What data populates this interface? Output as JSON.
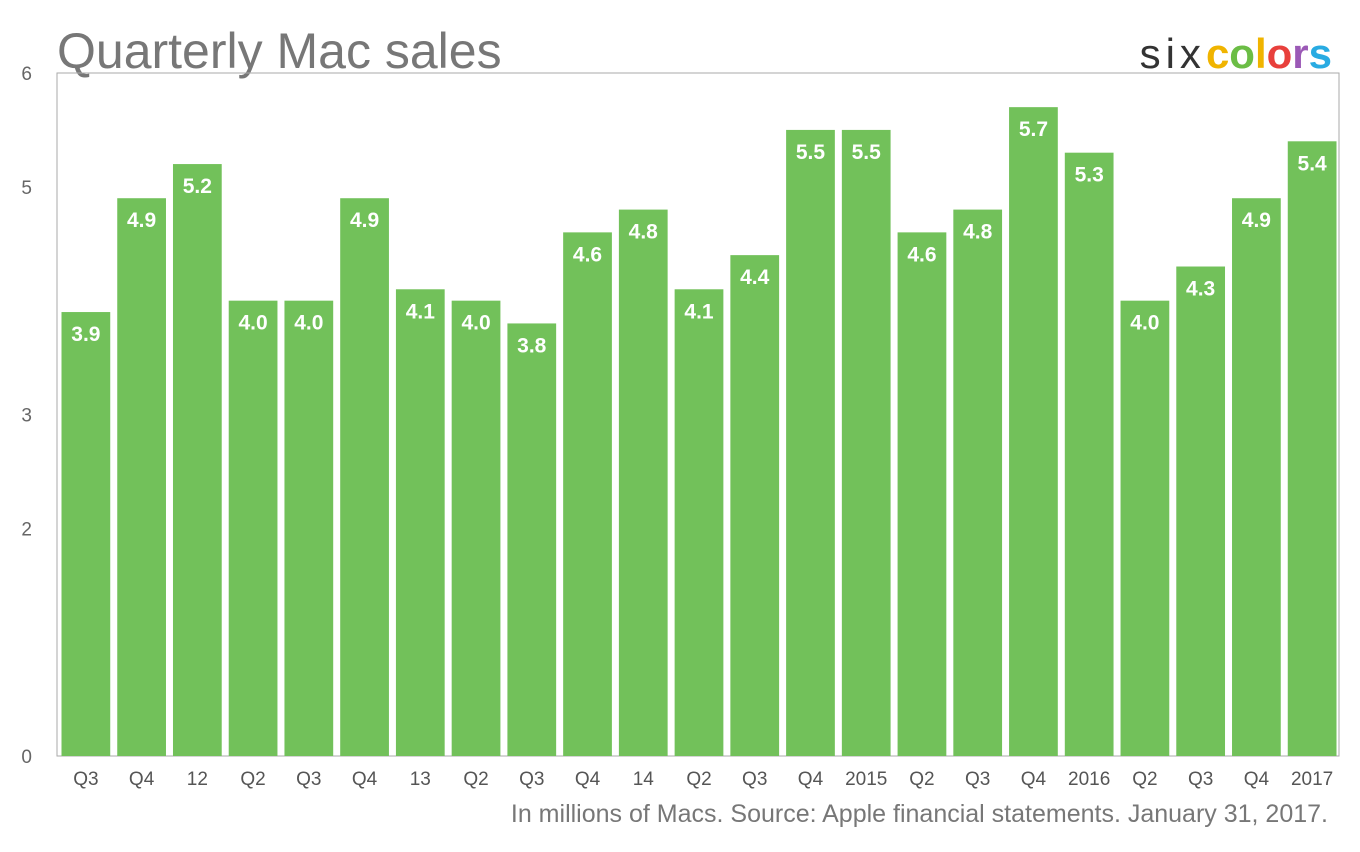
{
  "logo": {
    "six": "six",
    "letters": [
      {
        "ch": "c",
        "color": "#f0b400"
      },
      {
        "ch": "o",
        "color": "#6bbd45"
      },
      {
        "ch": "l",
        "color": "#f0b400"
      },
      {
        "ch": "o",
        "color": "#e8403c"
      },
      {
        "ch": "r",
        "color": "#9b59b6"
      },
      {
        "ch": "s",
        "color": "#29abe2"
      }
    ]
  },
  "chart_data": {
    "type": "bar",
    "title": "Quarterly Mac sales",
    "xlabel": "",
    "ylabel": "",
    "footnote": "In millions of Macs. Source: Apple financial statements. January 31, 2017.",
    "ylim": [
      0,
      6
    ],
    "yticks": [
      "0",
      "2",
      "3",
      "5",
      "6"
    ],
    "grid": false,
    "bar_color": "#72c15a",
    "categories": [
      "Q3",
      "Q4",
      "12",
      "Q2",
      "Q3",
      "Q4",
      "13",
      "Q2",
      "Q3",
      "Q4",
      "14",
      "Q2",
      "Q3",
      "Q4",
      "2015",
      "Q2",
      "Q3",
      "Q4",
      "2016",
      "Q2",
      "Q3",
      "Q4",
      "2017"
    ],
    "values": [
      3.9,
      4.9,
      5.2,
      4.0,
      4.0,
      4.9,
      4.1,
      4.0,
      3.8,
      4.6,
      4.8,
      4.1,
      4.4,
      5.5,
      5.5,
      4.6,
      4.8,
      5.7,
      5.3,
      4.0,
      4.3,
      4.9,
      5.4
    ],
    "labels": [
      "3.9",
      "4.9",
      "5.2",
      "4.0",
      "4.0",
      "4.9",
      "4.1",
      "4.0",
      "3.8",
      "4.6",
      "4.8",
      "4.1",
      "4.4",
      "5.5",
      "5.5",
      "4.6",
      "4.8",
      "5.7",
      "5.3",
      "4.0",
      "4.3",
      "4.9",
      "5.4"
    ]
  }
}
